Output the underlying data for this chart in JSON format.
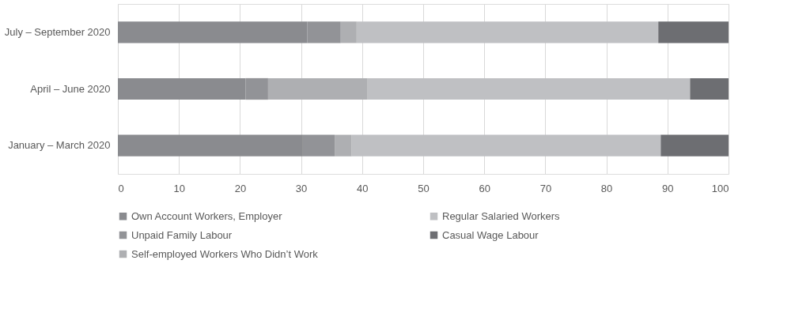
{
  "chart_data": {
    "type": "bar",
    "orientation": "horizontal",
    "stacked": true,
    "categories": [
      "July – September 2020",
      "April – June 2020",
      "January – March 2020"
    ],
    "series": [
      {
        "name": "Own Account Workers, Employer",
        "color": "#8a8b8f",
        "values": [
          31.0,
          20.9,
          30.3
        ]
      },
      {
        "name": "Unpaid Family Labour",
        "color": "#929397",
        "values": [
          5.5,
          3.7,
          5.2
        ]
      },
      {
        "name": "Self-employed Workers Who Didn’t Work",
        "color": "#aeafb2",
        "values": [
          2.6,
          16.3,
          2.8
        ]
      },
      {
        "name": "Regular Salaried Workers",
        "color": "#bfc0c3",
        "values": [
          49.4,
          52.8,
          50.6
        ]
      },
      {
        "name": "Casual Wage Labour",
        "color": "#6d6e72",
        "values": [
          11.5,
          6.3,
          11.1
        ]
      }
    ],
    "xlim": [
      0,
      100
    ],
    "xticks": [
      0,
      10,
      20,
      30,
      40,
      50,
      60,
      70,
      80,
      90,
      100
    ],
    "grid": "x",
    "legend": "bottom"
  }
}
